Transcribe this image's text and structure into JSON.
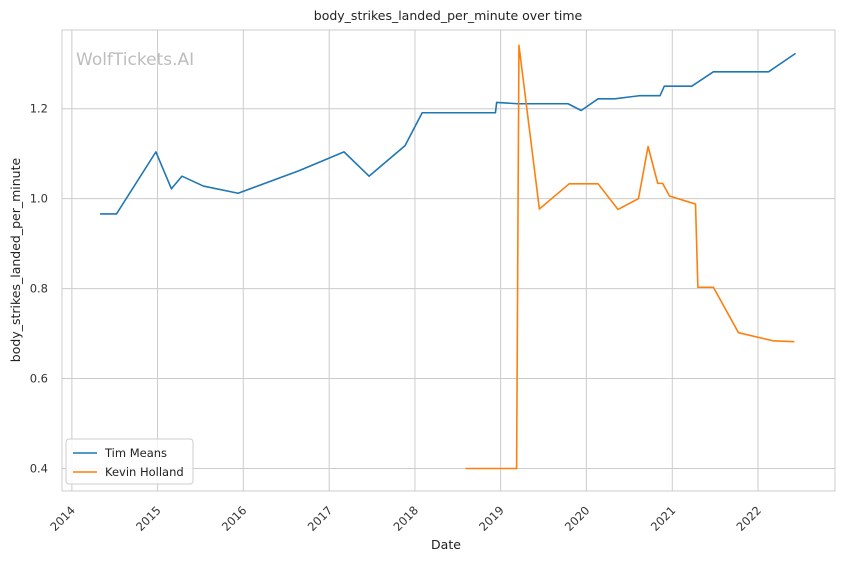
{
  "chart_data": {
    "type": "line",
    "title": "body_strikes_landed_per_minute over time",
    "xlabel": "Date",
    "ylabel": "body_strikes_landed_per_minute",
    "watermark": "WolfTickets.AI",
    "x_ticks": [
      "2014",
      "2015",
      "2016",
      "2017",
      "2018",
      "2019",
      "2020",
      "2021",
      "2022"
    ],
    "y_ticks": [
      "0.4",
      "0.6",
      "0.8",
      "1.0",
      "1.2"
    ],
    "xlim": [
      "2013-11-20",
      "2022-11-25"
    ],
    "ylim": [
      0.35,
      1.375
    ],
    "grid": true,
    "legend_position": "lower-left",
    "series": [
      {
        "name": "Tim Means",
        "color": "#1f77b4",
        "points": [
          [
            "2014-05-01",
            0.966
          ],
          [
            "2014-07-10",
            0.966
          ],
          [
            "2014-12-25",
            1.104
          ],
          [
            "2015-03-01",
            1.022
          ],
          [
            "2015-04-15",
            1.05
          ],
          [
            "2015-07-15",
            1.028
          ],
          [
            "2015-12-10",
            1.012
          ],
          [
            "2016-08-25",
            1.062
          ],
          [
            "2017-03-05",
            1.104
          ],
          [
            "2017-06-20",
            1.05
          ],
          [
            "2017-11-20",
            1.118
          ],
          [
            "2018-02-01",
            1.191
          ],
          [
            "2018-12-10",
            1.191
          ],
          [
            "2018-12-15",
            1.214
          ],
          [
            "2019-03-15",
            1.211
          ],
          [
            "2019-10-15",
            1.211
          ],
          [
            "2019-12-10",
            1.196
          ],
          [
            "2020-02-20",
            1.222
          ],
          [
            "2020-05-01",
            1.222
          ],
          [
            "2020-08-15",
            1.229
          ],
          [
            "2020-11-10",
            1.229
          ],
          [
            "2020-11-28",
            1.25
          ],
          [
            "2021-03-25",
            1.25
          ],
          [
            "2021-06-25",
            1.282
          ],
          [
            "2022-02-15",
            1.282
          ],
          [
            "2022-06-10",
            1.323
          ]
        ]
      },
      {
        "name": "Kevin Holland",
        "color": "#ff7f0e",
        "points": [
          [
            "2018-08-05",
            0.4
          ],
          [
            "2019-03-10",
            0.4
          ],
          [
            "2019-03-20",
            1.341
          ],
          [
            "2019-06-15",
            0.977
          ],
          [
            "2019-10-20",
            1.033
          ],
          [
            "2020-02-20",
            1.033
          ],
          [
            "2020-05-15",
            0.976
          ],
          [
            "2020-08-10",
            1.0
          ],
          [
            "2020-09-20",
            1.116
          ],
          [
            "2020-10-31",
            1.034
          ],
          [
            "2020-11-21",
            1.034
          ],
          [
            "2020-12-20",
            1.006
          ],
          [
            "2021-04-10",
            0.988
          ],
          [
            "2021-04-20",
            0.803
          ],
          [
            "2021-06-25",
            0.803
          ],
          [
            "2021-10-10",
            0.702
          ],
          [
            "2022-03-05",
            0.684
          ],
          [
            "2022-06-05",
            0.682
          ]
        ]
      }
    ]
  }
}
